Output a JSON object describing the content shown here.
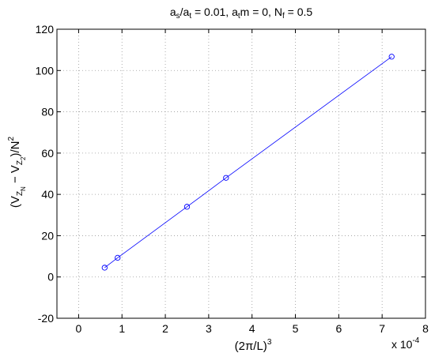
{
  "chart_data": {
    "type": "line",
    "title": {
      "parts": [
        "a",
        "s",
        "/a",
        "t",
        " = 0.01, a",
        "t",
        "m = 0, N",
        "f",
        " = 0.5"
      ]
    },
    "xlabel": {
      "parts": [
        "(2π/L)",
        "3"
      ]
    },
    "ylabel": {
      "parts": [
        "(V",
        "Z",
        "N",
        " − V",
        "Z",
        "2",
        ")/N",
        "2"
      ]
    },
    "x_multiplier": {
      "base": "x 10",
      "exponent": "-4"
    },
    "x_scale": 0.0001,
    "xlim": [
      -0.5,
      8
    ],
    "ylim": [
      -20,
      120
    ],
    "xticks": [
      0,
      1,
      2,
      3,
      4,
      5,
      6,
      7,
      8
    ],
    "yticks": [
      -20,
      0,
      20,
      40,
      60,
      80,
      100,
      120
    ],
    "grid": true,
    "series": [
      {
        "color": "#0000ff",
        "marker": "circle-open",
        "x": [
          0.6,
          0.9,
          2.5,
          3.4,
          7.22
        ],
        "y": [
          4.5,
          9.3,
          34,
          48,
          106.7
        ]
      }
    ]
  }
}
